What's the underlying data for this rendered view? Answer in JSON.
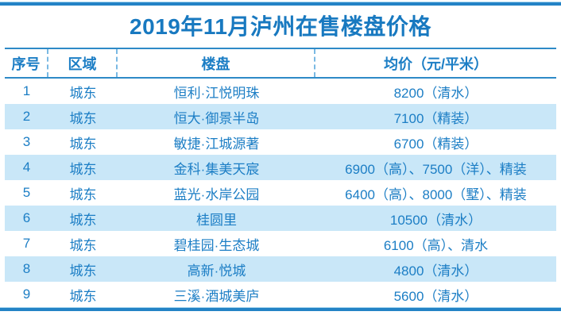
{
  "title": "2019年11月泸州在售楼盘价格",
  "table": {
    "headers": [
      "序号",
      "区域",
      "楼盘",
      "均价（元/平米）"
    ],
    "rows": [
      [
        "1",
        "城东",
        "恒利·江悦明珠",
        "8200（清水）"
      ],
      [
        "2",
        "城东",
        "恒大·御景半岛",
        "7100（精装）"
      ],
      [
        "3",
        "城东",
        "敏捷·江城源著",
        "6700（精装）"
      ],
      [
        "4",
        "城东",
        "金科·集美天宸",
        "6900（高）、7500（洋）、精装"
      ],
      [
        "5",
        "城东",
        "蓝光·水岸公园",
        "6400（高）、8000（墅）、精装"
      ],
      [
        "6",
        "城东",
        "桂圆里",
        "10500（清水）"
      ],
      [
        "7",
        "城东",
        "碧桂园·生态城",
        "6100（高）、清水"
      ],
      [
        "8",
        "城东",
        "高新·悦城",
        "4800（清水）"
      ],
      [
        "9",
        "城东",
        "三溪·酒城美庐",
        "5600（清水）"
      ]
    ]
  },
  "colors": {
    "text_blue": "#1c7ec5",
    "title_blue": "#1879c0",
    "alt_row_bg": "#c9e7f8",
    "thick_rule": "#2383c6",
    "header_rule": "#2e8ac7",
    "dashed_separator": "#7ab9e3"
  }
}
